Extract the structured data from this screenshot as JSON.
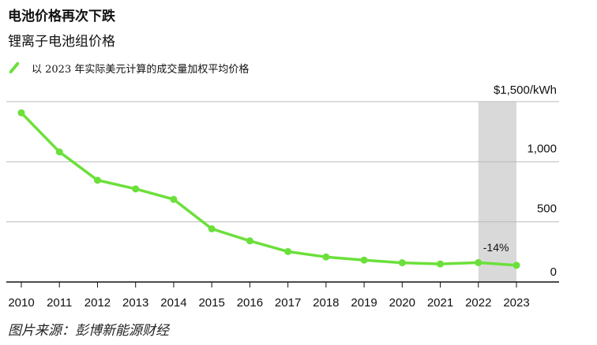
{
  "header": {
    "title": "电池价格再次下跌",
    "subtitle": "锂离子电池组价格"
  },
  "legend": {
    "label": "以 2023 年实际美元计算的成交量加权平均价格"
  },
  "source": "图片来源：彭博新能源财经",
  "colors": {
    "series": "#6be03a",
    "highlight": "#d9d9d9",
    "axis": "#111111",
    "grid": "#bbbbbb"
  },
  "chart_data": {
    "type": "line",
    "x": [
      "2010",
      "2011",
      "2012",
      "2013",
      "2014",
      "2015",
      "2016",
      "2017",
      "2018",
      "2019",
      "2020",
      "2021",
      "2022",
      "2023"
    ],
    "series": [
      {
        "values": [
          1407,
          1082,
          846,
          774,
          687,
          442,
          342,
          253,
          208,
          182,
          160,
          150,
          161,
          139
        ]
      }
    ],
    "y_tick_labels": [
      {
        "value": 1500,
        "label": "$1,500/kWh"
      },
      {
        "value": 1000,
        "label": "1,000"
      },
      {
        "value": 500,
        "label": "500"
      },
      {
        "value": 0,
        "label": "0"
      }
    ],
    "ylim": [
      0,
      1500
    ],
    "grid": true,
    "highlight_range": [
      "2022",
      "2023"
    ],
    "annotation": {
      "text": "-14%",
      "x": "2022"
    },
    "legend_position": "top-left"
  }
}
